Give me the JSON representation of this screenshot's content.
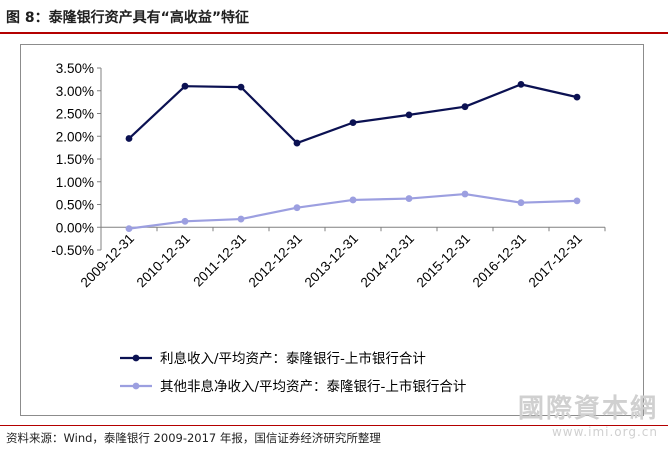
{
  "title": "图 8：泰隆银行资产具有“高收益”特征",
  "source": "资料来源：Wind，泰隆银行 2009-2017 年报，国信证券经济研究所整理",
  "watermark": {
    "main": "國際資本網",
    "sub": "www.imi.org.cn"
  },
  "colors": {
    "series1": "#0b1152",
    "series2": "#9c9fe0",
    "rule": "#b40000"
  },
  "chart_data": {
    "type": "line",
    "categories": [
      "2009-12-31",
      "2010-12-31",
      "2011-12-31",
      "2012-12-31",
      "2013-12-31",
      "2014-12-31",
      "2015-12-31",
      "2016-12-31",
      "2017-12-31"
    ],
    "series": [
      {
        "name": "利息收入/平均资产：泰隆银行-上市银行合计",
        "values": [
          1.95,
          3.1,
          3.08,
          1.85,
          2.3,
          2.47,
          2.65,
          3.14,
          2.86
        ]
      },
      {
        "name": "其他非息净收入/平均资产：泰隆银行-上市银行合计",
        "values": [
          -0.03,
          0.13,
          0.18,
          0.43,
          0.6,
          0.63,
          0.73,
          0.54,
          0.58
        ]
      }
    ],
    "y_ticks": [
      "3.50%",
      "3.00%",
      "2.50%",
      "2.00%",
      "1.50%",
      "1.00%",
      "0.50%",
      "0.00%",
      "-0.50%"
    ],
    "ylim": [
      -0.5,
      3.5
    ],
    "grid": false,
    "legend_position": "bottom"
  }
}
